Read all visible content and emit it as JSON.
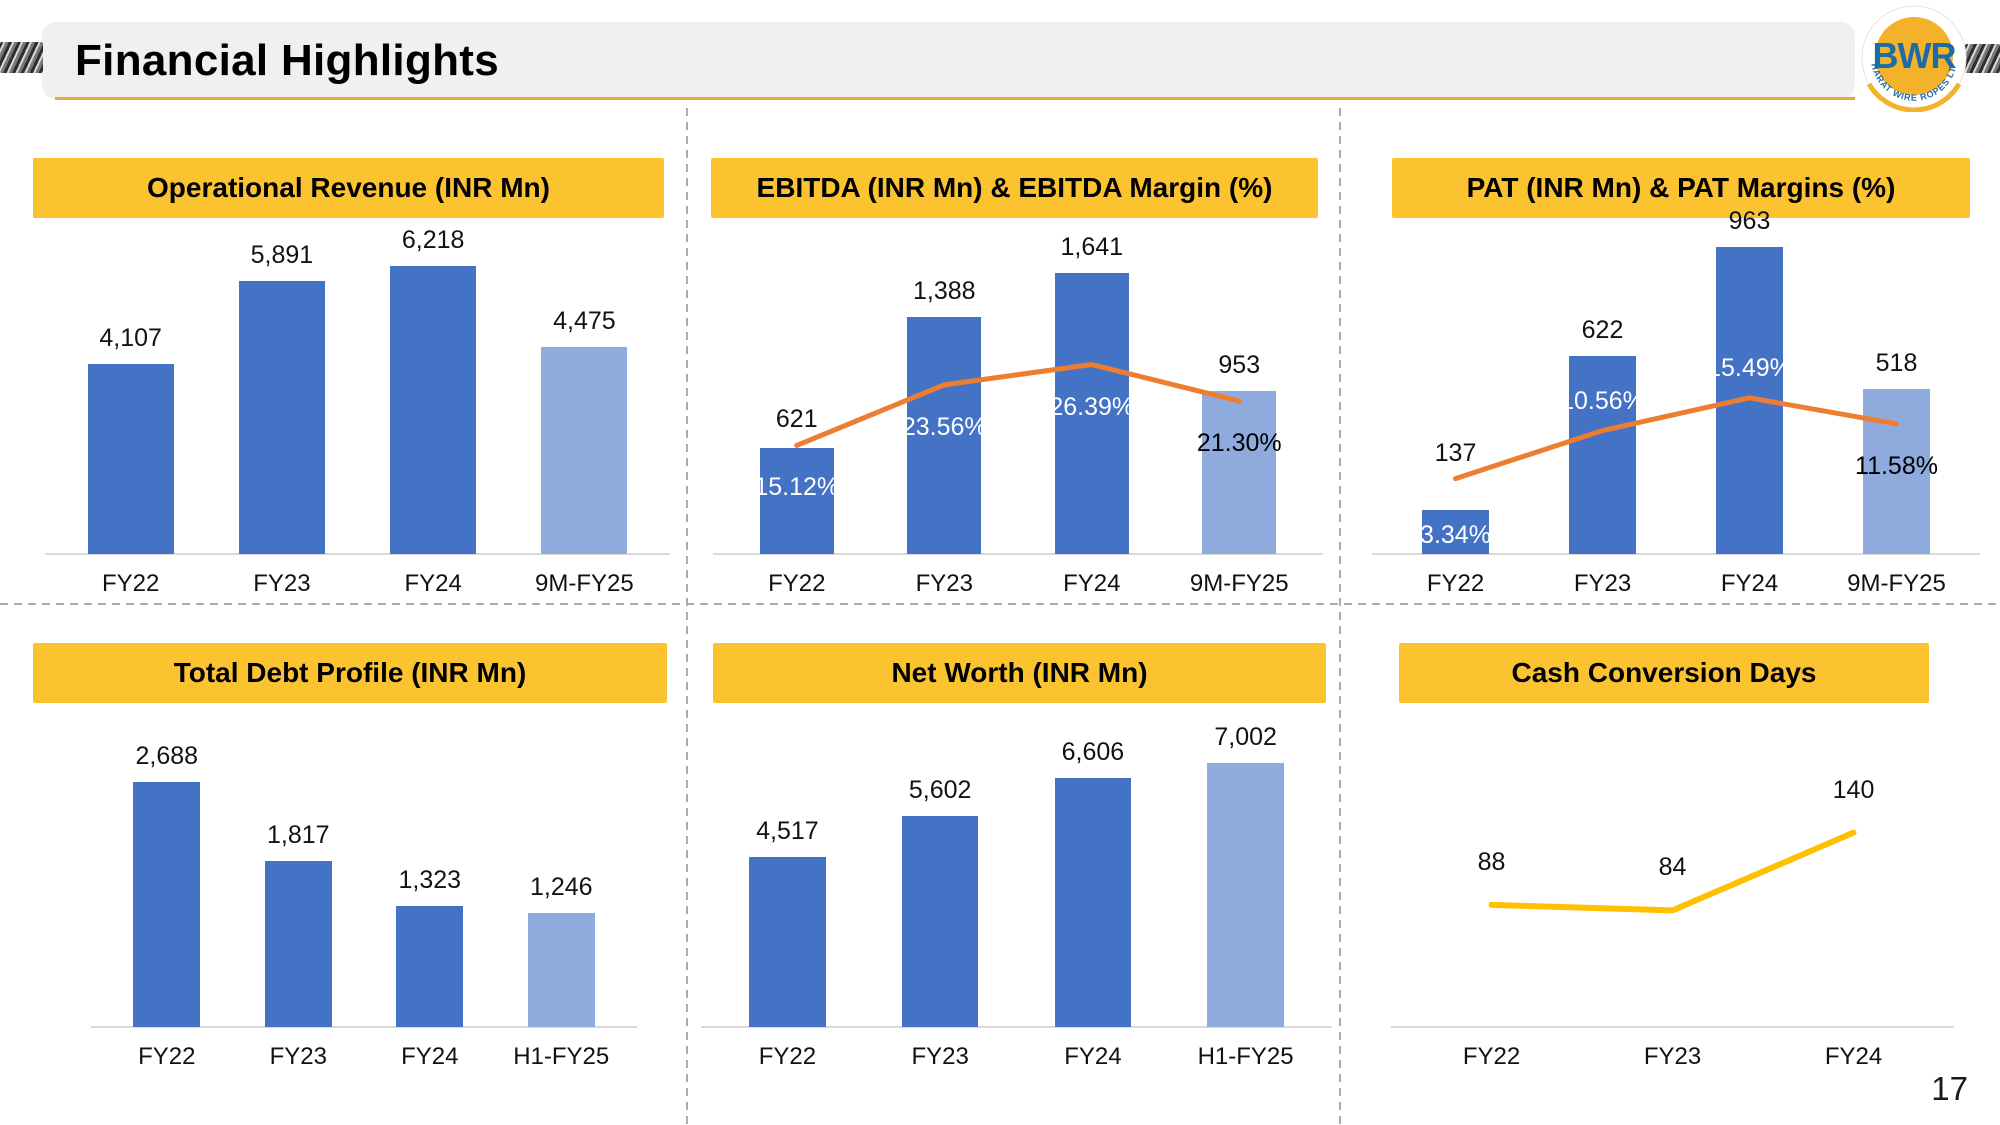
{
  "page": {
    "title": "Financial Highlights",
    "page_number": "17"
  },
  "logo": {
    "abbr": "BWR",
    "company": "BHARAT WIRE ROPES LTD.",
    "abbr_color": "#1D6CA8",
    "circle_color": "#F3B229"
  },
  "colors": {
    "bar_primary": "#4472C4",
    "bar_light": "#8FAADC",
    "margin_line": "#ED7D31",
    "cash_line": "#FFC000",
    "header_bg": "#FCC330",
    "title_band_bg": "#F0F0F0",
    "title_underline": "#E2AC3A",
    "divider": "#ACACAC",
    "axis_line": "#D9D9D9"
  },
  "chart_data": [
    {
      "type": "bar",
      "title": "Operational Revenue (INR Mn)",
      "categories": [
        "FY22",
        "FY23",
        "FY24",
        "9M-FY25"
      ],
      "values": [
        4107,
        5891,
        6218,
        4475
      ],
      "value_labels": [
        "4,107",
        "5,891",
        "6,218",
        "4,475"
      ],
      "ylim": [
        0,
        7750
      ],
      "grid": false,
      "legend": "none",
      "bar_colors": [
        "#4472C4",
        "#4472C4",
        "#4472C4",
        "#8FAADC"
      ]
    },
    {
      "type": "bar+line",
      "title": "EBITDA (INR Mn) & EBITDA Margin (%)",
      "categories": [
        "FY22",
        "FY23",
        "FY24",
        "9M-FY25"
      ],
      "values": [
        621,
        1388,
        1641,
        953
      ],
      "value_labels": [
        "621",
        "1,388",
        "1,641",
        "953"
      ],
      "ylim": [
        0,
        2100
      ],
      "grid": false,
      "legend": "none",
      "bar_colors": [
        "#4472C4",
        "#4472C4",
        "#4472C4",
        "#8FAADC"
      ],
      "line": {
        "name": "EBITDA Margin (%)",
        "values": [
          15.12,
          23.56,
          26.39,
          21.3
        ],
        "labels": [
          "15.12%",
          "23.56%",
          "26.39%",
          "21.30%"
        ],
        "label_colors": [
          "#FFFFFF",
          "#FFFFFF",
          "#FFFFFF",
          "#000000"
        ],
        "label_positions": [
          "below",
          "below",
          "below",
          "below"
        ],
        "axis": [
          0,
          50
        ],
        "color": "#ED7D31"
      }
    },
    {
      "type": "bar+line",
      "title": "PAT (INR Mn) & PAT Margins (%)",
      "categories": [
        "FY22",
        "FY23",
        "FY24",
        "9M-FY25"
      ],
      "values": [
        137,
        622,
        963,
        518
      ],
      "value_labels": [
        "137",
        "622",
        "963",
        "518"
      ],
      "ylim": [
        0,
        1125
      ],
      "grid": false,
      "legend": "none",
      "bar_colors": [
        "#4472C4",
        "#4472C4",
        "#4472C4",
        "#8FAADC"
      ],
      "line": {
        "name": "PAT Margins (%)",
        "values": [
          3.34,
          10.56,
          15.49,
          11.58
        ],
        "labels": [
          "3.34%",
          "10.56%",
          "15.49%",
          "11.58%"
        ],
        "label_colors": [
          "#FFFFFF",
          "#FFFFFF",
          "#FFFFFF",
          "#000000"
        ],
        "label_positions": [
          "below",
          "above",
          "above",
          "below"
        ],
        "axis": [
          -8,
          46
        ],
        "color": "#ED7D31"
      }
    },
    {
      "type": "bar",
      "title": "Total Debt Profile (INR Mn)",
      "categories": [
        "FY22",
        "FY23",
        "FY24",
        "H1-FY25"
      ],
      "values": [
        2688,
        1817,
        1323,
        1246
      ],
      "value_labels": [
        "2,688",
        "1,817",
        "1,323",
        "1,246"
      ],
      "ylim": [
        0,
        3800
      ],
      "grid": false,
      "legend": "none",
      "bar_colors": [
        "#4472C4",
        "#4472C4",
        "#4472C4",
        "#8FAADC"
      ]
    },
    {
      "type": "bar",
      "title": "Net Worth (INR Mn)",
      "categories": [
        "FY22",
        "FY23",
        "FY24",
        "H1-FY25"
      ],
      "values": [
        4517,
        5602,
        6606,
        7002
      ],
      "value_labels": [
        "4,517",
        "5,602",
        "6,606",
        "7,002"
      ],
      "ylim": [
        0,
        9200
      ],
      "grid": false,
      "legend": "none",
      "bar_colors": [
        "#4472C4",
        "#4472C4",
        "#4472C4",
        "#8FAADC"
      ]
    },
    {
      "type": "line",
      "title": "Cash Conversion Days",
      "categories": [
        "FY22",
        "FY23",
        "FY24"
      ],
      "values": [
        88,
        84,
        140
      ],
      "value_labels": [
        "88",
        "84",
        "140"
      ],
      "ylim": [
        0,
        250
      ],
      "grid": false,
      "legend": "none",
      "line_color": "#FFC000"
    }
  ]
}
